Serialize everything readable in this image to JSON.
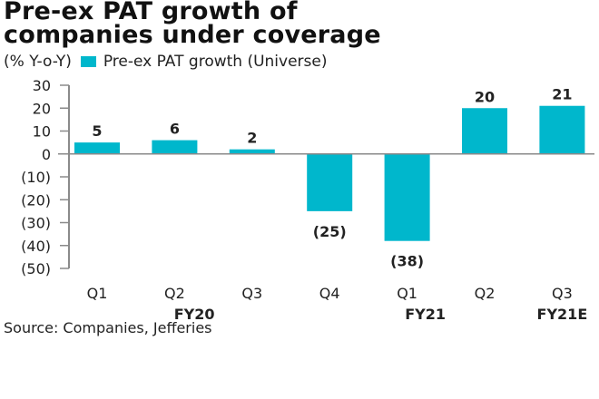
{
  "chart_data": {
    "type": "bar",
    "title": "Pre-ex PAT growth of companies under coverage",
    "title_lines": [
      "Pre-ex PAT growth of",
      "companies under coverage"
    ],
    "ylabel": "(% Y-o-Y)",
    "xlabel": "",
    "legend": [
      {
        "name": "Pre-ex PAT growth (Universe)",
        "color": "#00b7cc"
      }
    ],
    "legend_position": "top-left",
    "categories": [
      "Q1",
      "Q2",
      "Q3",
      "Q4",
      "Q1",
      "Q2",
      "Q3"
    ],
    "groups": [
      {
        "label": "FY20",
        "categories": [
          0,
          1,
          2,
          3
        ]
      },
      {
        "label": "FY21",
        "categories": [
          4,
          5
        ]
      },
      {
        "label": "FY21E",
        "categories": [
          6
        ]
      }
    ],
    "series": [
      {
        "name": "Pre-ex PAT growth (Universe)",
        "color": "#00b7cc",
        "values": [
          5,
          6,
          2,
          -25,
          -38,
          20,
          21
        ],
        "data_labels": [
          "5",
          "6",
          "2",
          "(25)",
          "(38)",
          "20",
          "21"
        ]
      }
    ],
    "yticks": [
      30,
      20,
      10,
      0,
      -10,
      -20,
      -30,
      -40,
      -50
    ],
    "ytick_labels": [
      "30",
      "20",
      "10",
      "0",
      "(10)",
      "(20)",
      "(30)",
      "(40)",
      "(50)"
    ],
    "ylim": [
      -50,
      30
    ],
    "grid": false,
    "source": "Source: Companies, Jefferies"
  }
}
